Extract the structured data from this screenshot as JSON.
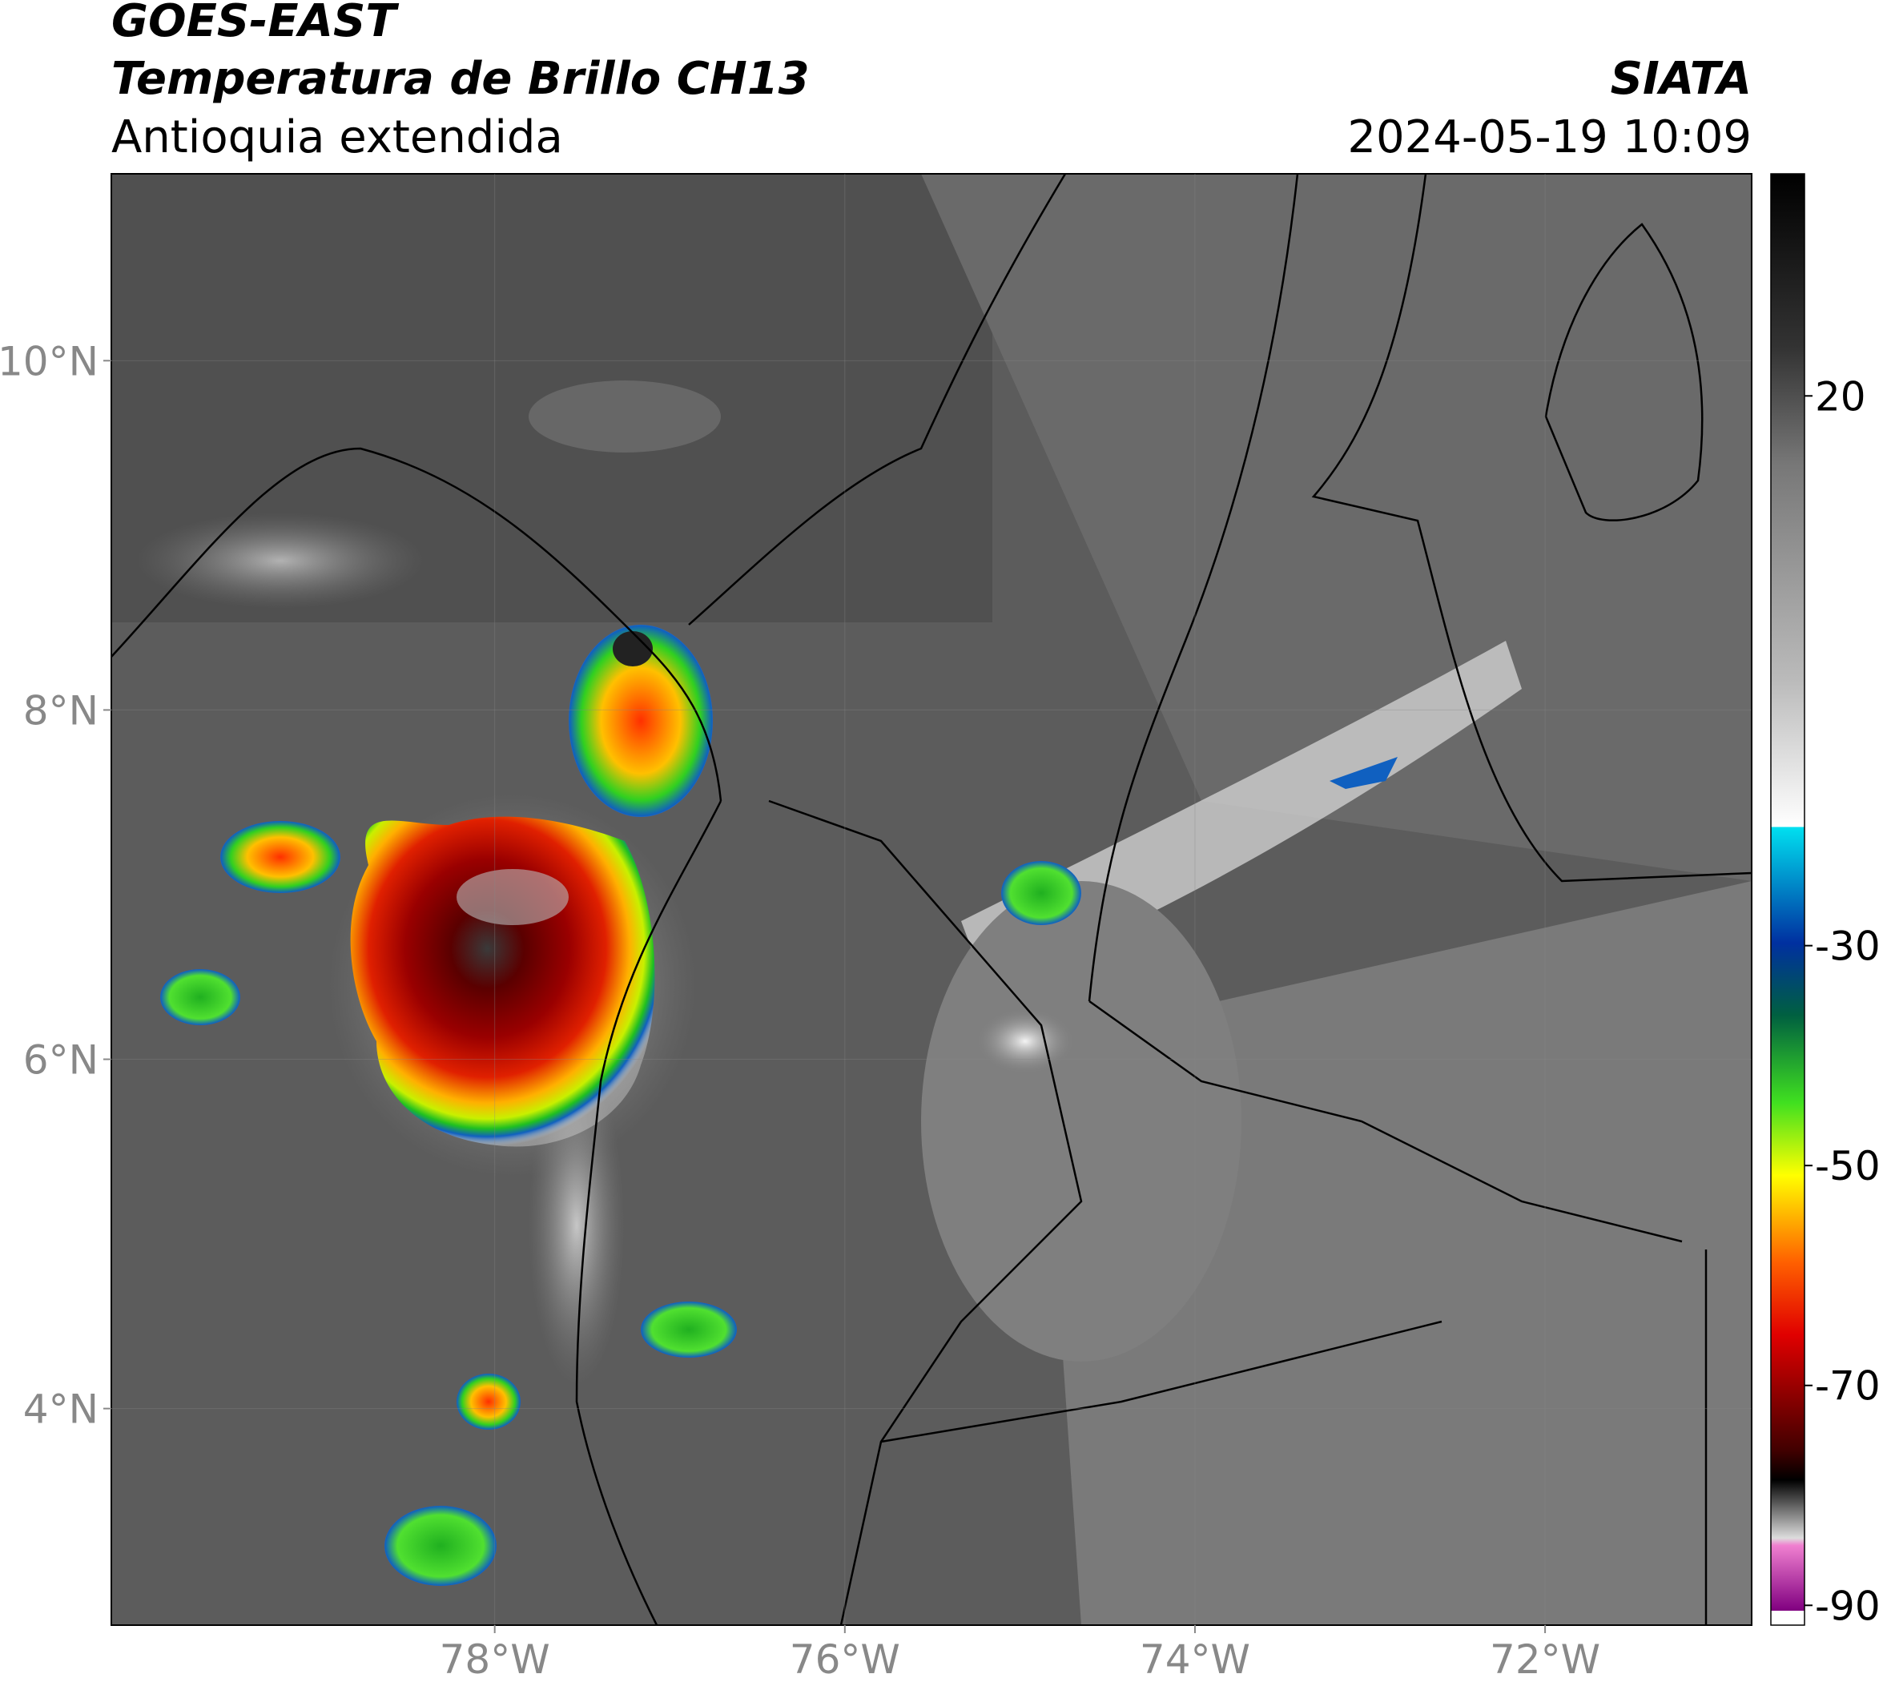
{
  "header": {
    "title": "GOES-EAST",
    "subtitle": "Temperatura de Brillo CH13",
    "region": "Antioquia extendida",
    "source": "SIATA",
    "datetime": "2024-05-19 10:09"
  },
  "map": {
    "lon_range": [
      -80.19,
      -70.82
    ],
    "lat_range": [
      2.76,
      11.07
    ],
    "lon_ticks": [
      {
        "value": -78,
        "label": "78°W"
      },
      {
        "value": -76,
        "label": "76°W"
      },
      {
        "value": -74,
        "label": "74°W"
      },
      {
        "value": -72,
        "label": "72°W"
      }
    ],
    "lat_ticks": [
      {
        "value": 10,
        "label": "10°N"
      },
      {
        "value": 8,
        "label": "8°N"
      },
      {
        "value": 6,
        "label": "6°N"
      },
      {
        "value": 4,
        "label": "4°N"
      }
    ]
  },
  "colorbar": {
    "range": [
      -91.8,
      40.2
    ],
    "ticks": [
      20,
      -30,
      -50,
      -70,
      -90
    ]
  }
}
